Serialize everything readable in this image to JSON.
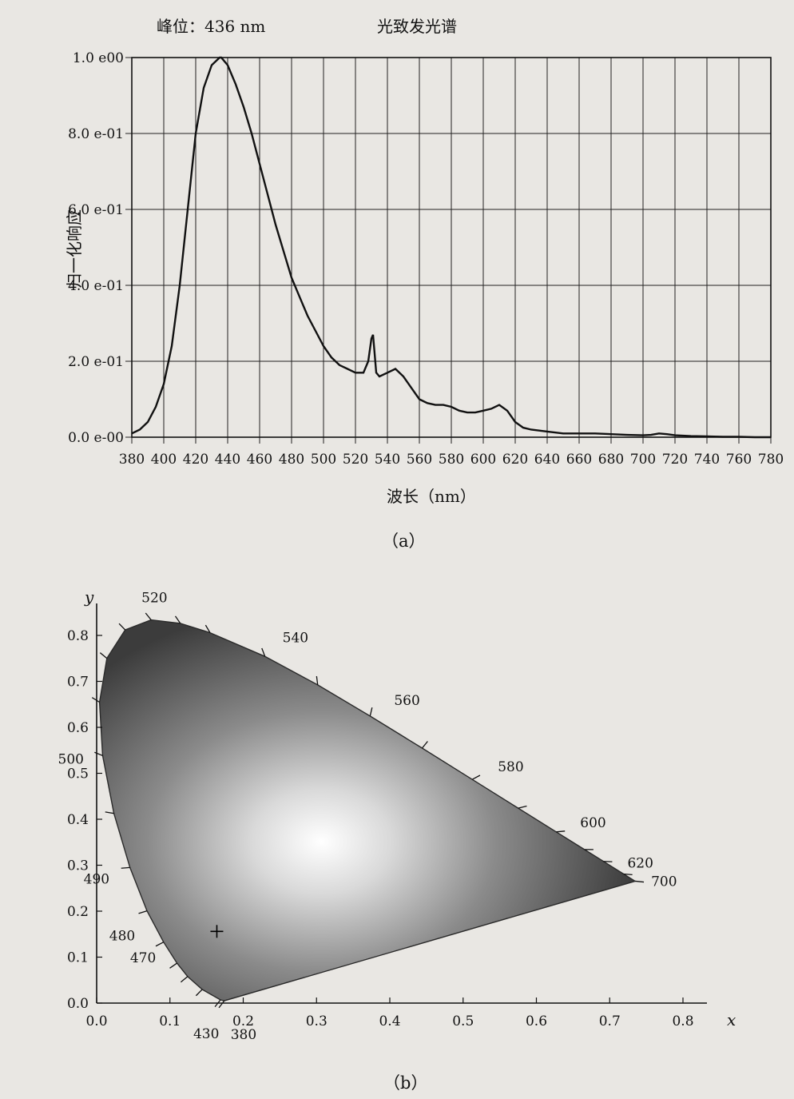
{
  "chart_data": [
    {
      "type": "line",
      "peak_label": "峰位：436 nm",
      "title": "光致发光谱",
      "xlabel": "波长（nm）",
      "ylabel": "归一化响应",
      "caption": "（a）",
      "xlim": [
        380,
        780
      ],
      "ylim": [
        0,
        1.0
      ],
      "grid": true,
      "x_ticks": [
        "380",
        "400",
        "420",
        "440",
        "460",
        "480",
        "500",
        "520",
        "540",
        "560",
        "580",
        "600",
        "620",
        "640",
        "660",
        "680",
        "700",
        "720",
        "740",
        "760",
        "780"
      ],
      "y_ticks": [
        {
          "value": 0.0,
          "label": "0.0 e-00"
        },
        {
          "value": 0.2,
          "label": "2.0 e-01"
        },
        {
          "value": 0.4,
          "label": "4.0 e-01"
        },
        {
          "value": 0.6,
          "label": "6.0 e-01"
        },
        {
          "value": 0.8,
          "label": "8.0 e-01"
        },
        {
          "value": 1.0,
          "label": "1.0 e00"
        }
      ],
      "series": [
        {
          "x": [
            380,
            385,
            390,
            395,
            400,
            405,
            410,
            415,
            420,
            425,
            430,
            435,
            436,
            440,
            445,
            450,
            455,
            460,
            465,
            470,
            475,
            480,
            485,
            490,
            495,
            500,
            505,
            510,
            515,
            520,
            525,
            528,
            530,
            531,
            532,
            533,
            535,
            540,
            545,
            550,
            555,
            560,
            565,
            570,
            575,
            580,
            585,
            590,
            595,
            600,
            605,
            610,
            615,
            620,
            625,
            630,
            640,
            650,
            660,
            670,
            680,
            690,
            700,
            705,
            710,
            715,
            720,
            730,
            740,
            750,
            760,
            770,
            780
          ],
          "y": [
            0.01,
            0.02,
            0.04,
            0.08,
            0.14,
            0.24,
            0.4,
            0.6,
            0.8,
            0.92,
            0.98,
            1.0,
            1.0,
            0.98,
            0.93,
            0.87,
            0.8,
            0.72,
            0.64,
            0.56,
            0.49,
            0.42,
            0.37,
            0.32,
            0.28,
            0.24,
            0.21,
            0.19,
            0.18,
            0.17,
            0.17,
            0.2,
            0.26,
            0.27,
            0.22,
            0.17,
            0.16,
            0.17,
            0.18,
            0.16,
            0.13,
            0.1,
            0.09,
            0.085,
            0.085,
            0.08,
            0.07,
            0.065,
            0.065,
            0.07,
            0.075,
            0.085,
            0.07,
            0.04,
            0.025,
            0.02,
            0.015,
            0.01,
            0.01,
            0.01,
            0.008,
            0.006,
            0.005,
            0.006,
            0.01,
            0.008,
            0.005,
            0.003,
            0.002,
            0.001,
            0.001,
            0.0,
            0.0
          ]
        }
      ]
    },
    {
      "type": "scatter",
      "caption": "（b）",
      "xlabel": "x",
      "ylabel": "y",
      "xlim": [
        0.0,
        0.8
      ],
      "ylim": [
        0.0,
        0.8
      ],
      "x_ticks": [
        "0.0",
        "0.1",
        "0.2",
        "0.3",
        "0.4",
        "0.5",
        "0.6",
        "0.7",
        "0.8"
      ],
      "y_ticks": [
        "0.0",
        "0.1",
        "0.2",
        "0.3",
        "0.4",
        "0.5",
        "0.6",
        "0.7",
        "0.8"
      ],
      "spectral_locus": {
        "nm": [
          380,
          430,
          460,
          470,
          475,
          480,
          485,
          490,
          495,
          500,
          505,
          510,
          515,
          520,
          525,
          530,
          540,
          550,
          560,
          570,
          580,
          590,
          600,
          610,
          620,
          640,
          700
        ],
        "x": [
          0.1741,
          0.1689,
          0.144,
          0.1241,
          0.1096,
          0.0913,
          0.0687,
          0.0454,
          0.0235,
          0.0082,
          0.0039,
          0.0139,
          0.0389,
          0.0743,
          0.1142,
          0.1547,
          0.2296,
          0.3016,
          0.3731,
          0.4441,
          0.5125,
          0.5752,
          0.627,
          0.6658,
          0.6915,
          0.719,
          0.7347
        ],
        "y": [
          0.005,
          0.0069,
          0.0297,
          0.0578,
          0.0868,
          0.1327,
          0.2007,
          0.295,
          0.4127,
          0.5384,
          0.6548,
          0.7502,
          0.812,
          0.8338,
          0.8262,
          0.8059,
          0.7543,
          0.6923,
          0.6245,
          0.5547,
          0.4866,
          0.4242,
          0.3725,
          0.334,
          0.3083,
          0.2809,
          0.2653
        ]
      },
      "wavelength_labels": [
        {
          "nm": 380,
          "text": "380"
        },
        {
          "nm": 430,
          "text": "430"
        },
        {
          "nm": 470,
          "text": "470"
        },
        {
          "nm": 480,
          "text": "480"
        },
        {
          "nm": 490,
          "text": "490"
        },
        {
          "nm": 500,
          "text": "500"
        },
        {
          "nm": 520,
          "text": "520"
        },
        {
          "nm": 540,
          "text": "540"
        },
        {
          "nm": 560,
          "text": "560"
        },
        {
          "nm": 580,
          "text": "580"
        },
        {
          "nm": 600,
          "text": "600"
        },
        {
          "nm": 620,
          "text": "620"
        },
        {
          "nm": 700,
          "text": "700"
        }
      ],
      "marker": {
        "x": 0.164,
        "y": 0.156,
        "symbol": "+"
      }
    }
  ]
}
